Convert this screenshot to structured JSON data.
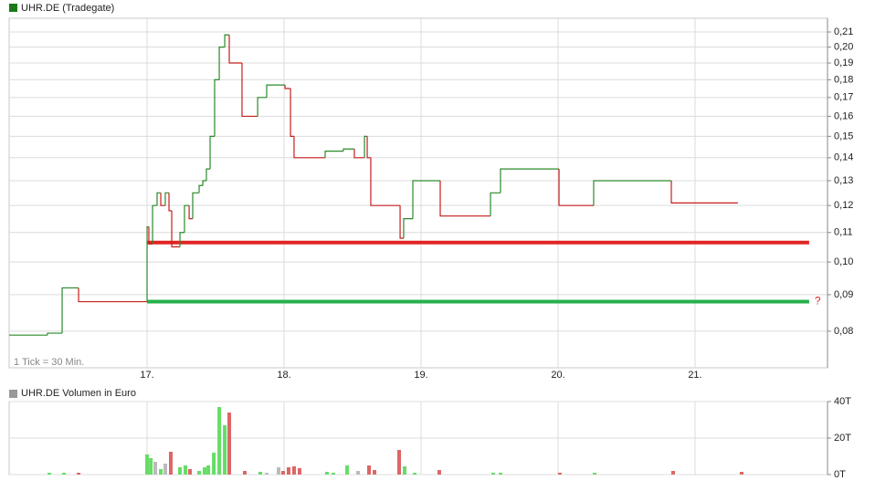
{
  "chart_data": [
    {
      "type": "step",
      "title": "UHR.DE (Tradegate)",
      "legend_color": "#1a7a1a",
      "note": "1 Tick = 30 Min.",
      "log_scale": true,
      "grid": true,
      "x": [
        15.993,
        16.273,
        16.38,
        16.5,
        17.0,
        17.013,
        17.04,
        17.073,
        17.1,
        17.133,
        17.16,
        17.18,
        17.24,
        17.273,
        17.307,
        17.333,
        17.38,
        17.407,
        17.433,
        17.46,
        17.493,
        17.527,
        17.567,
        17.6,
        17.693,
        17.807,
        17.873,
        18.007,
        18.047,
        18.073,
        18.3,
        18.433,
        18.513,
        18.587,
        18.607,
        18.633,
        18.847,
        18.873,
        18.94,
        19.14,
        19.507,
        19.58,
        20.007,
        20.26,
        20.827,
        21.313
      ],
      "values": [
        0.079,
        0.0795,
        0.092,
        0.088,
        0.112,
        0.106,
        0.12,
        0.125,
        0.12,
        0.125,
        0.118,
        0.105,
        0.11,
        0.12,
        0.115,
        0.125,
        0.128,
        0.13,
        0.135,
        0.15,
        0.18,
        0.2,
        0.208,
        0.19,
        0.16,
        0.17,
        0.177,
        0.175,
        0.15,
        0.14,
        0.143,
        0.144,
        0.14,
        0.15,
        0.14,
        0.12,
        0.108,
        0.115,
        0.13,
        0.116,
        0.125,
        0.135,
        0.12,
        0.13,
        0.121,
        0.121
      ],
      "up_color": "#2a8a2a",
      "down_color": "#c81e1e",
      "reference_lines": [
        {
          "value": 0.1065,
          "color": "#e02424",
          "from": 17.0,
          "to": 21.833
        },
        {
          "value": 0.088,
          "color": "#26b04a",
          "from": 17.0,
          "to": 21.833
        }
      ],
      "annotation": {
        "text": "?",
        "color": "#e02424"
      },
      "xlim": [
        15.993,
        21.967
      ],
      "xticks": [
        {
          "value": 17,
          "label": "17."
        },
        {
          "value": 18,
          "label": "18."
        },
        {
          "value": 19,
          "label": "19."
        },
        {
          "value": 20,
          "label": "20."
        },
        {
          "value": 21,
          "label": "21."
        }
      ],
      "ylim": [
        0.0711,
        0.2195
      ],
      "yticks": [
        {
          "value": 0.08,
          "label": "0,08"
        },
        {
          "value": 0.09,
          "label": "0,09"
        },
        {
          "value": 0.1,
          "label": "0,10"
        },
        {
          "value": 0.11,
          "label": "0,11"
        },
        {
          "value": 0.12,
          "label": "0,12"
        },
        {
          "value": 0.13,
          "label": "0,13"
        },
        {
          "value": 0.14,
          "label": "0,14"
        },
        {
          "value": 0.15,
          "label": "0,15"
        },
        {
          "value": 0.16,
          "label": "0,16"
        },
        {
          "value": 0.17,
          "label": "0,17"
        },
        {
          "value": 0.18,
          "label": "0,18"
        },
        {
          "value": 0.19,
          "label": "0,19"
        },
        {
          "value": 0.2,
          "label": "0,20"
        },
        {
          "value": 0.21,
          "label": "0,21"
        }
      ]
    },
    {
      "type": "bar",
      "title": "UHR.DE Volumen in Euro",
      "legend_color": "#999999",
      "grid": true,
      "x": [
        16.287,
        16.393,
        16.5,
        17.0,
        17.027,
        17.06,
        17.1,
        17.133,
        17.173,
        17.24,
        17.28,
        17.313,
        17.38,
        17.42,
        17.447,
        17.487,
        17.527,
        17.567,
        17.6,
        17.713,
        17.827,
        17.873,
        17.96,
        17.993,
        18.033,
        18.073,
        18.113,
        18.313,
        18.36,
        18.46,
        18.54,
        18.62,
        18.66,
        18.84,
        18.88,
        18.953,
        19.133,
        19.527,
        19.58,
        20.013,
        20.267,
        20.84,
        21.34
      ],
      "values": [
        1000,
        1000,
        1000,
        11000,
        9000,
        7000,
        3000,
        6000,
        12500,
        4000,
        5000,
        3000,
        2000,
        4000,
        5000,
        12000,
        37000,
        27000,
        34000,
        2000,
        1500,
        1000,
        4000,
        2000,
        4000,
        4500,
        3500,
        1500,
        1000,
        5000,
        2000,
        5000,
        2500,
        13500,
        4500,
        1000,
        2500,
        1000,
        1000,
        1000,
        1000,
        2000,
        1500
      ],
      "colors": [
        "#66dd66",
        "#66dd66",
        "#dd6666",
        "#66dd66",
        "#66dd66",
        "#bbbbbb",
        "#66dd66",
        "#bbbbbb",
        "#dd6666",
        "#66dd66",
        "#66dd66",
        "#dd6666",
        "#66dd66",
        "#66dd66",
        "#66dd66",
        "#66dd66",
        "#66dd66",
        "#66dd66",
        "#dd6666",
        "#dd6666",
        "#66dd66",
        "#bbbbbb",
        "#bbbbbb",
        "#dd6666",
        "#dd6666",
        "#dd6666",
        "#dd6666",
        "#66dd66",
        "#66dd66",
        "#66dd66",
        "#bbbbbb",
        "#dd6666",
        "#dd6666",
        "#dd6666",
        "#66dd66",
        "#66dd66",
        "#dd6666",
        "#66dd66",
        "#66dd66",
        "#dd6666",
        "#66dd66",
        "#dd6666",
        "#dd6666"
      ],
      "ylim": [
        0,
        40000
      ],
      "yticks": [
        {
          "value": 0,
          "label": "0T"
        },
        {
          "value": 20000,
          "label": "20T"
        },
        {
          "value": 40000,
          "label": "40T"
        }
      ]
    }
  ]
}
